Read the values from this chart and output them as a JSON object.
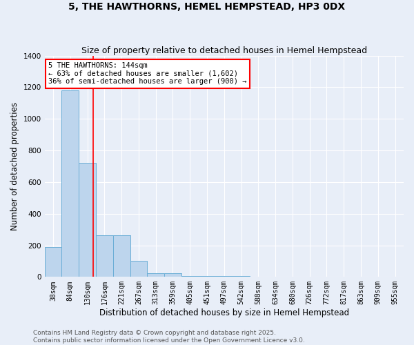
{
  "title_line1": "5, THE HAWTHORNS, HEMEL HEMPSTEAD, HP3 0DX",
  "title_line2": "Size of property relative to detached houses in Hemel Hempstead",
  "xlabel": "Distribution of detached houses by size in Hemel Hempstead",
  "ylabel": "Number of detached properties",
  "categories": [
    "38sqm",
    "84sqm",
    "130sqm",
    "176sqm",
    "221sqm",
    "267sqm",
    "313sqm",
    "359sqm",
    "405sqm",
    "451sqm",
    "497sqm",
    "542sqm",
    "588sqm",
    "634sqm",
    "680sqm",
    "726sqm",
    "772sqm",
    "817sqm",
    "863sqm",
    "909sqm",
    "955sqm"
  ],
  "values": [
    190,
    1180,
    720,
    265,
    265,
    100,
    25,
    25,
    5,
    5,
    5,
    5,
    0,
    0,
    0,
    0,
    0,
    0,
    0,
    0,
    0
  ],
  "bar_color": "#bdd5ed",
  "bar_edgecolor": "#6aaed6",
  "red_line_x": 2.35,
  "ylim": [
    0,
    1400
  ],
  "yticks": [
    0,
    200,
    400,
    600,
    800,
    1000,
    1200,
    1400
  ],
  "annotation_text": "5 THE HAWTHORNS: 144sqm\n← 63% of detached houses are smaller (1,602)\n36% of semi-detached houses are larger (900) →",
  "annotation_box_color": "white",
  "annotation_box_edgecolor": "red",
  "footer_line1": "Contains HM Land Registry data © Crown copyright and database right 2025.",
  "footer_line2": "Contains public sector information licensed under the Open Government Licence v3.0.",
  "background_color": "#e8eef8",
  "grid_color": "#ffffff",
  "title_fontsize": 10,
  "subtitle_fontsize": 9,
  "axis_label_fontsize": 8.5,
  "tick_fontsize": 7,
  "annotation_fontsize": 7.5,
  "footer_fontsize": 6.5
}
